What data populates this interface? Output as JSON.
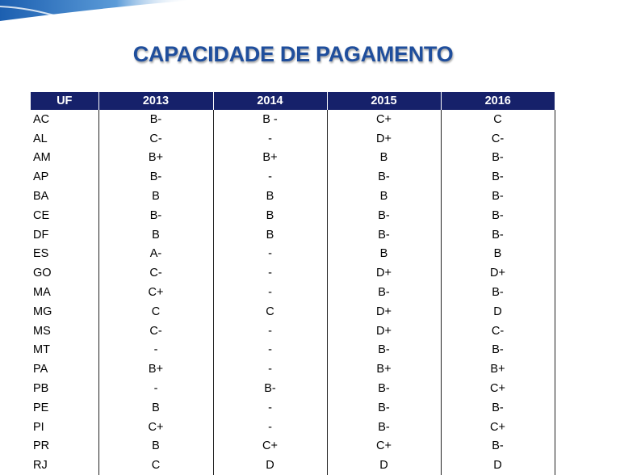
{
  "title": "CAPACIDADE DE PAGAMENTO",
  "table": {
    "header": [
      "UF",
      "2013",
      "2014",
      "2015",
      "2016"
    ],
    "rows": [
      [
        "AC",
        "B-",
        "B -",
        "C+",
        "C"
      ],
      [
        "AL",
        "C-",
        "-",
        "D+",
        "C-"
      ],
      [
        "AM",
        "B+",
        "B+",
        "B",
        "B-"
      ],
      [
        "AP",
        "B-",
        "-",
        "B-",
        "B-"
      ],
      [
        "BA",
        "B",
        "B",
        "B",
        "B-"
      ],
      [
        "CE",
        "B-",
        "B",
        "B-",
        "B-"
      ],
      [
        "DF",
        "B",
        "B",
        "B-",
        "B-"
      ],
      [
        "ES",
        "A-",
        "-",
        "B",
        "B"
      ],
      [
        "GO",
        "C-",
        "-",
        "D+",
        "D+"
      ],
      [
        "MA",
        "C+",
        "-",
        "B-",
        "B-"
      ],
      [
        "MG",
        "C",
        "C",
        "D+",
        "D"
      ],
      [
        "MS",
        "C-",
        "-",
        "D+",
        "C-"
      ],
      [
        "MT",
        "-",
        "-",
        "B-",
        "B-"
      ],
      [
        "PA",
        "B+",
        "-",
        "B+",
        "B+"
      ],
      [
        "PB",
        "-",
        "B-",
        "B-",
        "C+"
      ],
      [
        "PE",
        "B",
        "-",
        "B-",
        "B-"
      ],
      [
        "PI",
        "C+",
        "-",
        "B-",
        "C+"
      ],
      [
        "PR",
        "B",
        "C+",
        "C+",
        "B-"
      ],
      [
        "RJ",
        "C",
        "D",
        "D",
        "D"
      ]
    ]
  }
}
